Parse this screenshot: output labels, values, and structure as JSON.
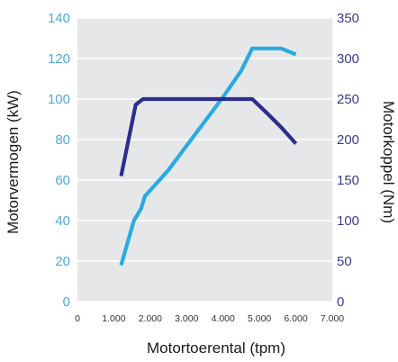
{
  "chart_data": {
    "type": "line",
    "xlabel": "Motortoerental (tpm)",
    "ylabel_left": "Motorvermogen (kW)",
    "ylabel_right": "Motorkoppel (Nm)",
    "x_ticks": [
      "0",
      "1.000",
      "2.000",
      "3.000",
      "4.000",
      "5.000",
      "6.000",
      "7.000"
    ],
    "y_left_ticks": [
      "0",
      "20",
      "40",
      "60",
      "80",
      "100",
      "120",
      "140"
    ],
    "y_right_ticks": [
      "0",
      "50",
      "100",
      "150",
      "200",
      "250",
      "300",
      "350"
    ],
    "xlim": [
      0,
      7000
    ],
    "ylim_left": [
      0,
      140
    ],
    "ylim_right": [
      0,
      350
    ],
    "grid": true,
    "series": [
      {
        "axis": "left",
        "color": "#29abe2",
        "points": [
          [
            1200,
            18
          ],
          [
            1550,
            40
          ],
          [
            1750,
            46
          ],
          [
            1850,
            52
          ],
          [
            2000,
            55
          ],
          [
            2500,
            65
          ],
          [
            3000,
            77
          ],
          [
            3500,
            89
          ],
          [
            4000,
            101
          ],
          [
            4500,
            114
          ],
          [
            4800,
            125
          ],
          [
            5000,
            125
          ],
          [
            5600,
            125
          ],
          [
            6000,
            122
          ]
        ]
      },
      {
        "axis": "right",
        "color": "#2b2e8c",
        "points": [
          [
            1200,
            155
          ],
          [
            1600,
            243
          ],
          [
            1800,
            250
          ],
          [
            2000,
            250
          ],
          [
            3000,
            250
          ],
          [
            4000,
            250
          ],
          [
            4800,
            250
          ],
          [
            5200,
            233
          ],
          [
            5600,
            215
          ],
          [
            6000,
            195
          ]
        ]
      }
    ]
  }
}
